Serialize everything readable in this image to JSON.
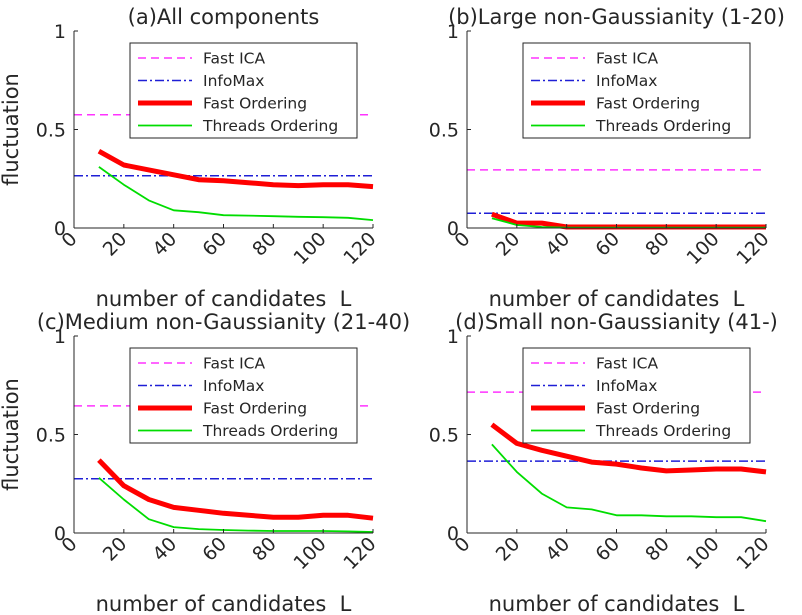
{
  "figure": {
    "legend_labels": [
      "Fast ICA",
      "InfoMax",
      "Fast Ordering",
      "Threads Ordering"
    ],
    "colors": {
      "fast_ica": "#ff33ff",
      "infomax": "#1f1fd6",
      "fast_ordering": "#ff0000",
      "threads_ordering": "#00dd00",
      "axis": "#262626"
    }
  },
  "chart_data": [
    {
      "type": "line",
      "title": "(a)All components",
      "xlabel": "number of candidates  L",
      "ylabel": "fluctuation",
      "xlim": [
        0,
        120
      ],
      "ylim": [
        0,
        1
      ],
      "xticks": [
        0,
        20,
        40,
        60,
        80,
        100,
        120
      ],
      "yticks": [
        0,
        0.5,
        1
      ],
      "ytick_labels": [
        "0",
        "0.5",
        "1"
      ],
      "legend_position": "top-right",
      "series": [
        {
          "name": "Fast ICA",
          "constant": 0.575
        },
        {
          "name": "InfoMax",
          "constant": 0.265
        },
        {
          "name": "Fast Ordering",
          "x": [
            10,
            20,
            30,
            40,
            50,
            60,
            70,
            80,
            90,
            100,
            110,
            120
          ],
          "values": [
            0.39,
            0.32,
            0.295,
            0.27,
            0.245,
            0.24,
            0.23,
            0.22,
            0.215,
            0.22,
            0.22,
            0.21
          ]
        },
        {
          "name": "Threads Ordering",
          "x": [
            10,
            20,
            30,
            40,
            50,
            60,
            70,
            80,
            90,
            100,
            110,
            120
          ],
          "values": [
            0.31,
            0.22,
            0.14,
            0.09,
            0.08,
            0.065,
            0.063,
            0.06,
            0.057,
            0.055,
            0.052,
            0.04
          ]
        }
      ]
    },
    {
      "type": "line",
      "title": "(b)Large non-Gaussianity (1-20)",
      "xlabel": "number of candidates  L",
      "ylabel": "",
      "xlim": [
        0,
        120
      ],
      "ylim": [
        0,
        1
      ],
      "xticks": [
        0,
        20,
        40,
        60,
        80,
        100,
        120
      ],
      "yticks": [
        0,
        0.5,
        1
      ],
      "ytick_labels": [
        "0",
        "0.5",
        "1"
      ],
      "legend_position": "top-right",
      "series": [
        {
          "name": "Fast ICA",
          "constant": 0.295
        },
        {
          "name": "InfoMax",
          "constant": 0.075
        },
        {
          "name": "Fast Ordering",
          "x": [
            10,
            20,
            30,
            40,
            50,
            60,
            70,
            80,
            90,
            100,
            110,
            120
          ],
          "values": [
            0.07,
            0.025,
            0.025,
            0.005,
            0.005,
            0.005,
            0.005,
            0.005,
            0.005,
            0.005,
            0.005,
            0.005
          ]
        },
        {
          "name": "Threads Ordering",
          "x": [
            10,
            20,
            30,
            40,
            50,
            60,
            70,
            80,
            90,
            100,
            110,
            120
          ],
          "values": [
            0.05,
            0.015,
            0.005,
            0.002,
            0.002,
            0.002,
            0.002,
            0.002,
            0.002,
            0.002,
            0.002,
            0.002
          ]
        }
      ]
    },
    {
      "type": "line",
      "title": "(c)Medium non-Gaussianity (21-40)",
      "xlabel": "number of candidates  L",
      "ylabel": "fluctuation",
      "xlim": [
        0,
        120
      ],
      "ylim": [
        0,
        1
      ],
      "xticks": [
        0,
        20,
        40,
        60,
        80,
        100,
        120
      ],
      "yticks": [
        0,
        0.5,
        1
      ],
      "ytick_labels": [
        "0",
        "0.5",
        "1"
      ],
      "legend_position": "top-right",
      "series": [
        {
          "name": "Fast ICA",
          "constant": 0.645
        },
        {
          "name": "InfoMax",
          "constant": 0.275
        },
        {
          "name": "Fast Ordering",
          "x": [
            10,
            20,
            30,
            40,
            50,
            60,
            70,
            80,
            90,
            100,
            110,
            120
          ],
          "values": [
            0.37,
            0.24,
            0.17,
            0.13,
            0.115,
            0.1,
            0.09,
            0.08,
            0.08,
            0.09,
            0.09,
            0.075
          ]
        },
        {
          "name": "Threads Ordering",
          "x": [
            10,
            20,
            30,
            40,
            50,
            60,
            70,
            80,
            90,
            100,
            110,
            120
          ],
          "values": [
            0.28,
            0.17,
            0.07,
            0.03,
            0.02,
            0.015,
            0.012,
            0.01,
            0.01,
            0.01,
            0.008,
            0.005
          ]
        }
      ]
    },
    {
      "type": "line",
      "title": "(d)Small non-Gaussianity (41-)",
      "xlabel": "number of candidates  L",
      "ylabel": "",
      "xlim": [
        0,
        120
      ],
      "ylim": [
        0,
        1
      ],
      "xticks": [
        0,
        20,
        40,
        60,
        80,
        100,
        120
      ],
      "yticks": [
        0,
        0.5,
        1
      ],
      "ytick_labels": [
        "0",
        "0.5",
        "1"
      ],
      "legend_position": "top-right",
      "series": [
        {
          "name": "Fast ICA",
          "constant": 0.715
        },
        {
          "name": "InfoMax",
          "constant": 0.365
        },
        {
          "name": "Fast Ordering",
          "x": [
            10,
            20,
            30,
            40,
            50,
            60,
            70,
            80,
            90,
            100,
            110,
            120
          ],
          "values": [
            0.55,
            0.455,
            0.42,
            0.39,
            0.36,
            0.35,
            0.33,
            0.315,
            0.32,
            0.325,
            0.325,
            0.31
          ]
        },
        {
          "name": "Threads Ordering",
          "x": [
            10,
            20,
            30,
            40,
            50,
            60,
            70,
            80,
            90,
            100,
            110,
            120
          ],
          "values": [
            0.45,
            0.31,
            0.2,
            0.13,
            0.12,
            0.09,
            0.09,
            0.085,
            0.085,
            0.08,
            0.08,
            0.06
          ]
        }
      ]
    }
  ]
}
